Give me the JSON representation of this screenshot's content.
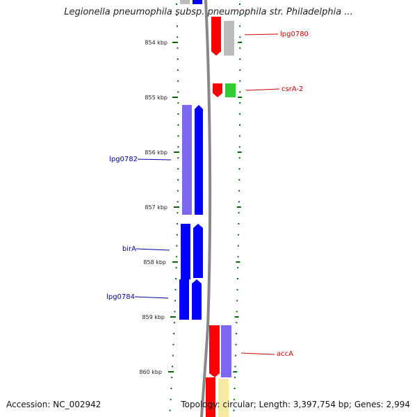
{
  "title": "Legionella pneumophila subsp. pneumophila str. Philadelphia ...",
  "accession": "Accession: NC_002942",
  "stats": "Topology: circular; Length: 3,397,754 bp; Genes: 2,994",
  "scale_labels": [
    "854 kbp",
    "855 kbp",
    "856 kbp",
    "857 kbp",
    "858 kbp",
    "859 kbp",
    "860 kbp"
  ],
  "gene_labels": {
    "forward": [
      "lpg0780",
      "csrA-2",
      "accA"
    ],
    "reverse": [
      "lpg0782",
      "birA",
      "lpg0784"
    ]
  },
  "colors": {
    "forward_label": "#cc0000",
    "reverse_label": "#000099",
    "tick": "#006600",
    "backbone": "#888888",
    "red_feature": "#ff0000",
    "green_feature": "#33cc33",
    "blue_feature": "#0000ff",
    "lavender_feature": "#7b68ee",
    "gray_feature": "#bbbbbb",
    "yellow_feature": "#f5eaa0"
  }
}
